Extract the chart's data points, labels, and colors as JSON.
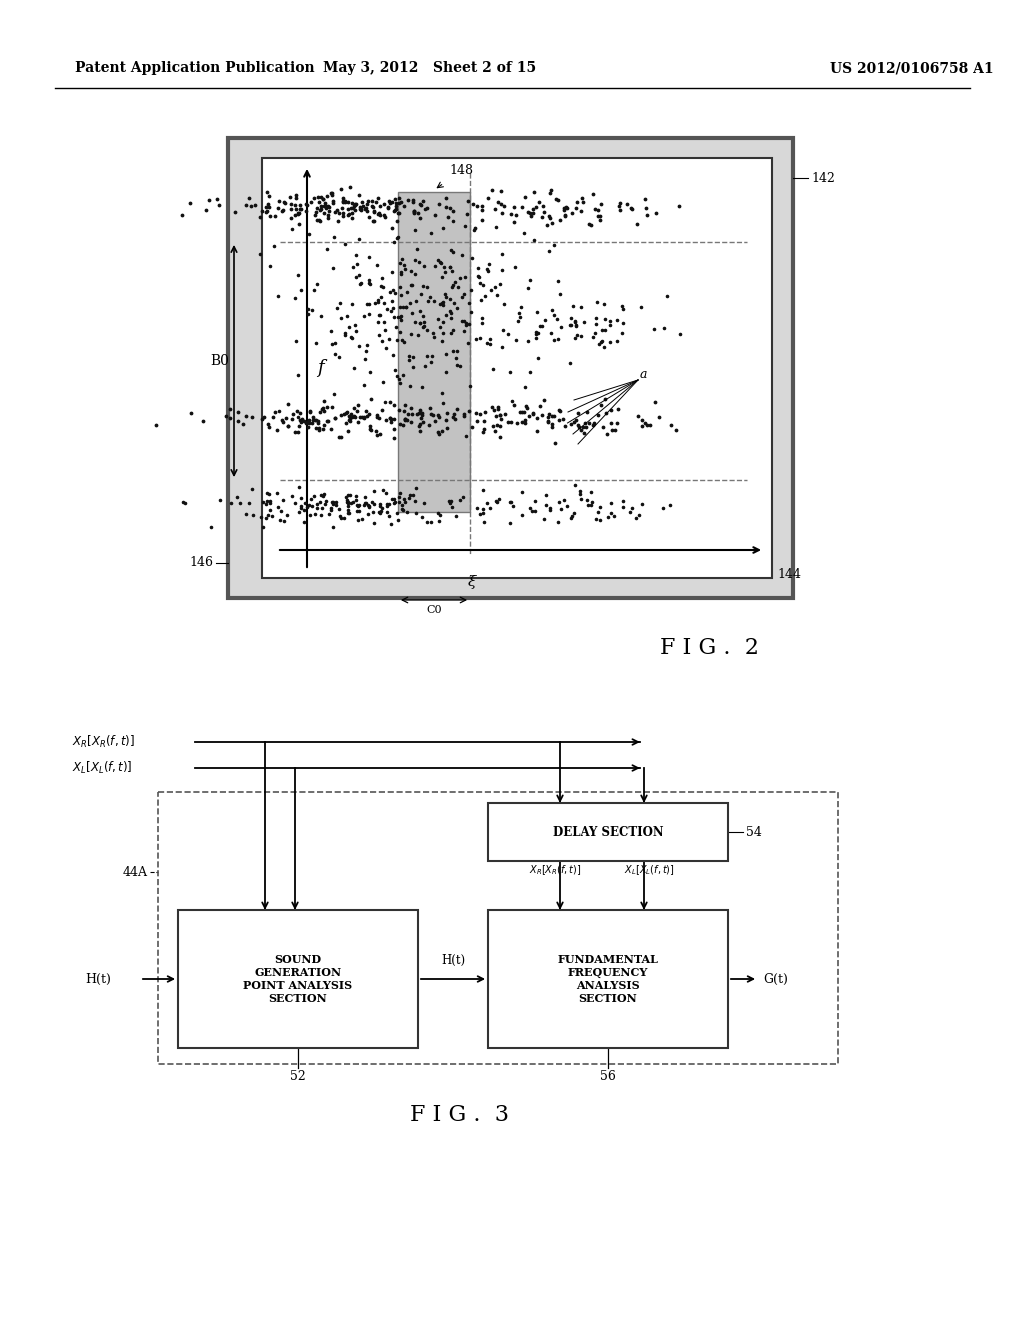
{
  "bg_color": "#ffffff",
  "header_left": "Patent Application Publication",
  "header_mid": "May 3, 2012   Sheet 2 of 15",
  "header_right": "US 2012/0106758 A1",
  "fig2_label": "F I G .  2",
  "fig3_label": "F I G .  3"
}
